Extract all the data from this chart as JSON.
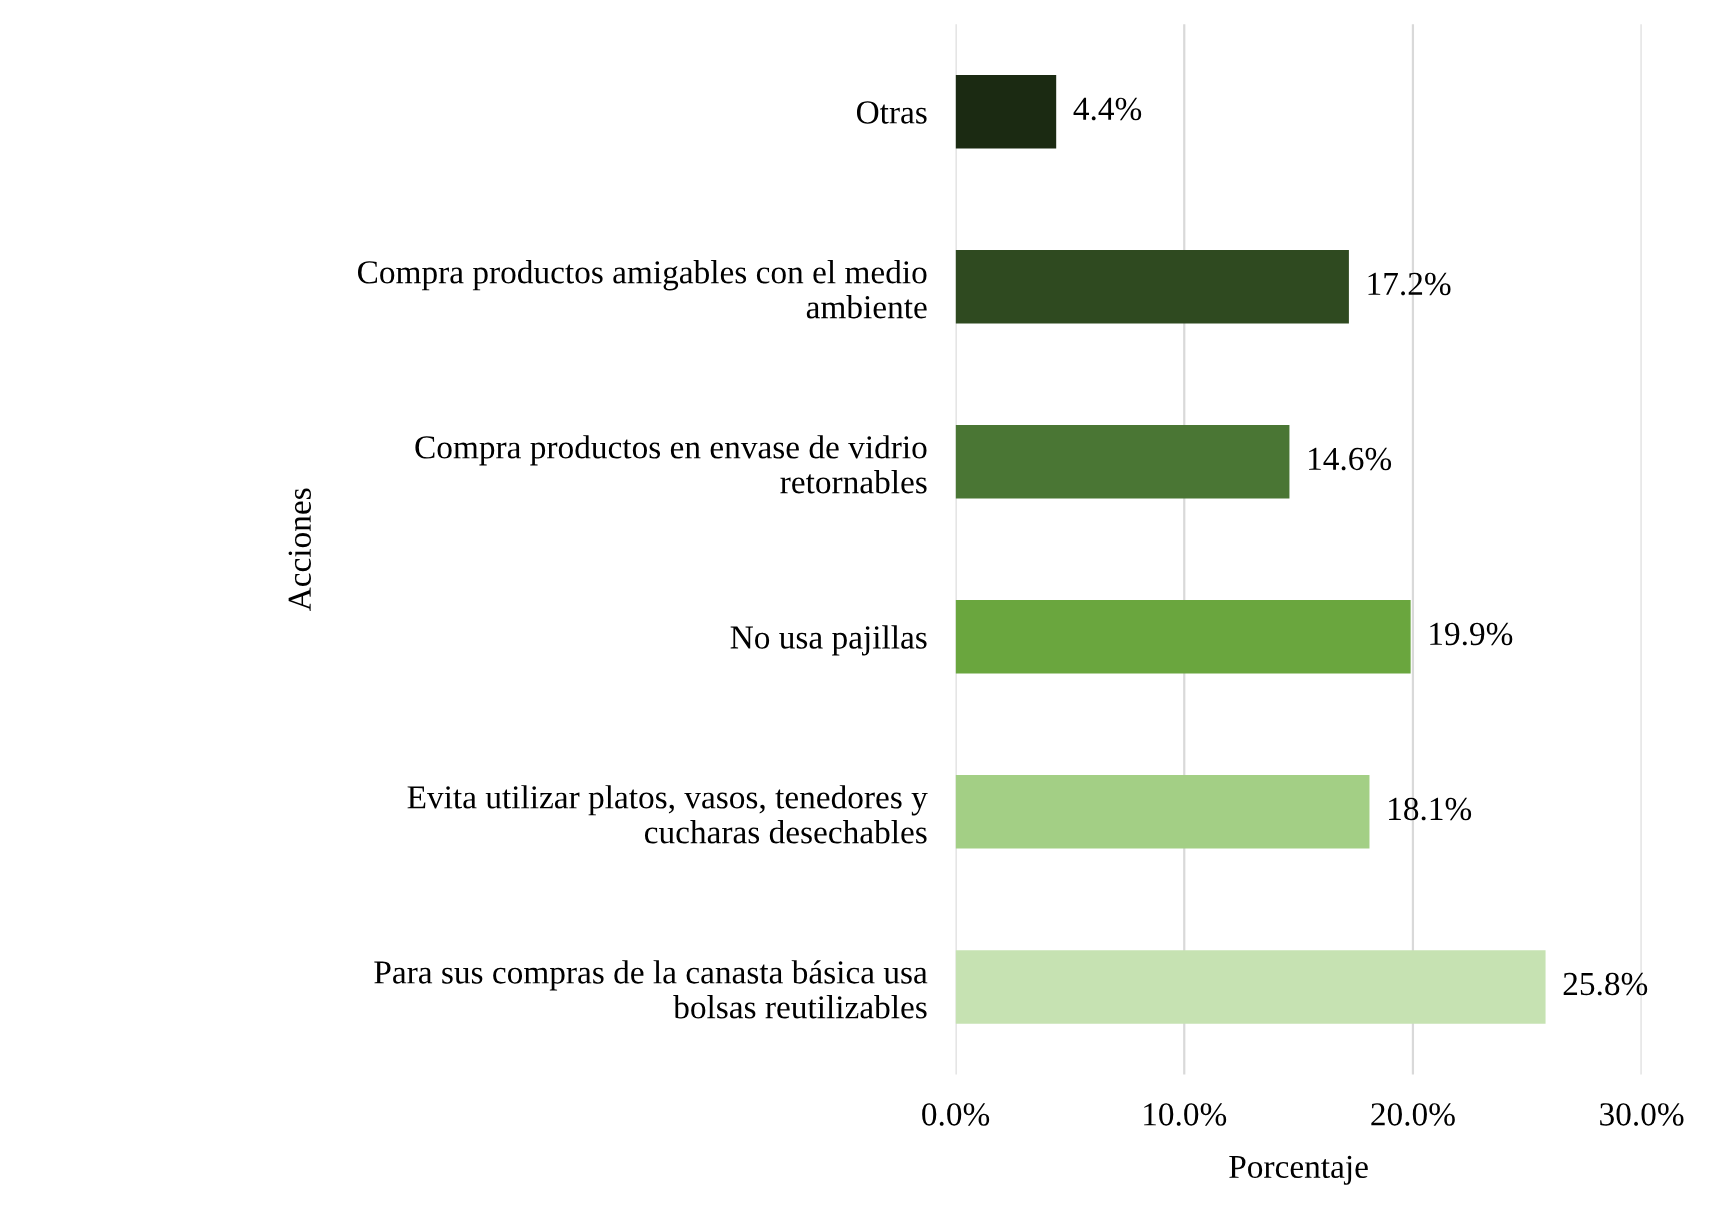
{
  "chart_data": {
    "type": "bar",
    "orientation": "horizontal",
    "xlabel": "Porcentaje",
    "ylabel": "Acciones",
    "categories": [
      "Otras",
      "Compra productos amigables con el medio\nambiente",
      "Compra productos en envase de vidrio\nretornables",
      "No usa pajillas",
      "Evita utilizar platos, vasos, tenedores y\ncucharas desechables",
      "Para sus compras de la canasta básica usa\nbolsas reutilizables"
    ],
    "values": [
      4.4,
      17.2,
      14.6,
      19.9,
      18.1,
      25.8
    ],
    "colors": [
      "#1b2a12",
      "#2f4a20",
      "#4a7634",
      "#6aa63e",
      "#a3cf85",
      "#c6e2b2"
    ],
    "value_labels": [
      "4.4%",
      "17.2%",
      "14.6%",
      "19.9%",
      "18.1%",
      "25.8%"
    ],
    "xlim": [
      0,
      30
    ],
    "xticks": [
      {
        "value": 0,
        "label": "0.0%"
      },
      {
        "value": 10,
        "label": "10.0%"
      },
      {
        "value": 20,
        "label": "20.0%"
      },
      {
        "value": 30,
        "label": "30.0%"
      }
    ],
    "grid": "x"
  }
}
